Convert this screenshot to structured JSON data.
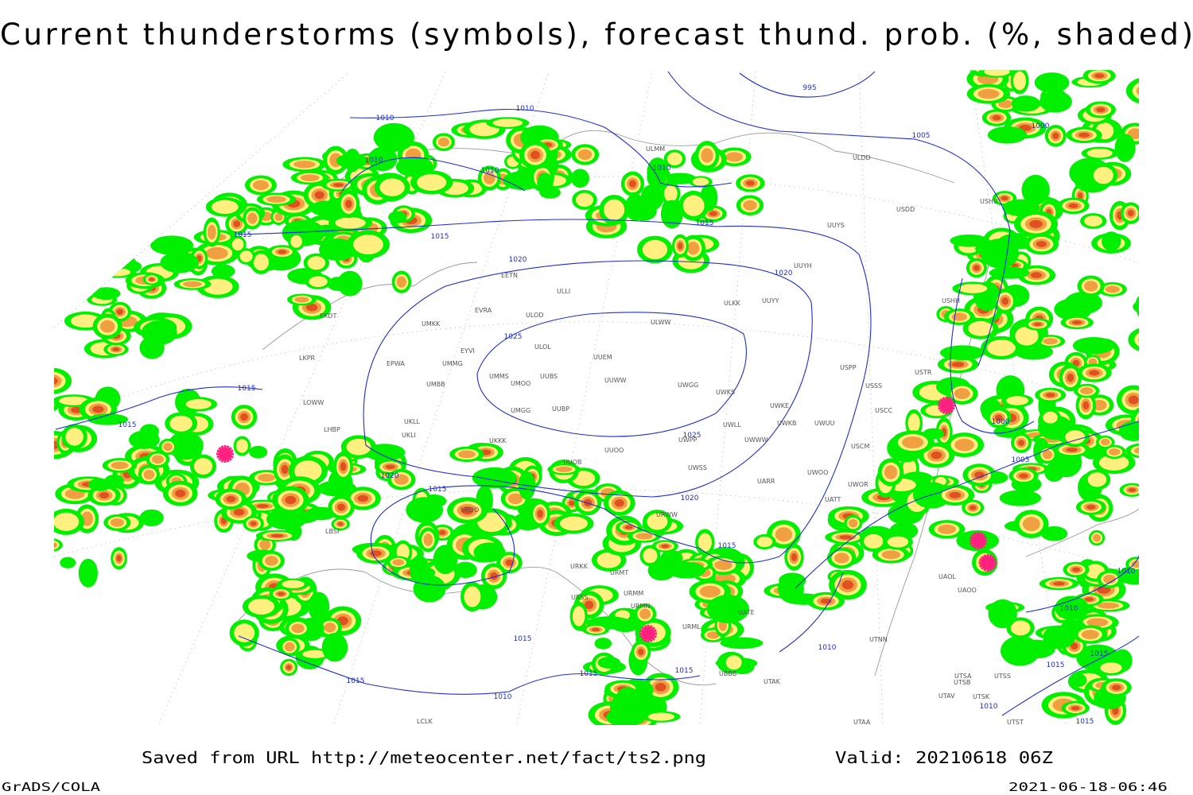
{
  "title": "Current thunderstorms (symbols), forecast thund. prob. (%, shaded)",
  "footer": {
    "source": "Saved from URL http://meteocenter.net/fact/ts2.png",
    "valid": "Valid: 20210618 06Z",
    "software": "GrADS/COLA",
    "timestamp": "2021-06-18-06:46"
  },
  "isobar_labels": [
    "995",
    "1000",
    "1000",
    "1005",
    "1005",
    "1010",
    "1010",
    "1010",
    "1010",
    "1010",
    "1010",
    "1010",
    "1010",
    "1010",
    "1010",
    "1015",
    "1015",
    "1015",
    "1015",
    "1015",
    "1015",
    "1015",
    "1015",
    "1015",
    "1015",
    "1015",
    "1015",
    "1015",
    "1015",
    "1020",
    "1020",
    "1020",
    "1020",
    "1025",
    "1025"
  ],
  "station_labels": [
    "ULMM",
    "ULDD",
    "USDD",
    "USHU",
    "UUYS",
    "UUYH",
    "EETN",
    "ULLI",
    "ULKK",
    "UUYY",
    "USHH",
    "EVRA",
    "EKDT",
    "ULOD",
    "UMKK",
    "ULWW",
    "ULOL",
    "EYVI",
    "UUEM",
    "LKPR",
    "EPWA",
    "UMMG",
    "USPP",
    "USTR",
    "UMMS",
    "UUBS",
    "UUWW",
    "UMOO",
    "UWGG",
    "UMBB",
    "UWKS",
    "USSS",
    "LOWW",
    "UWKE",
    "UMGG",
    "UUBP",
    "USCC",
    "UWUU",
    "UKLL",
    "UWKB",
    "UWLL",
    "LHBP",
    "UKLI",
    "UWWW",
    "UWPP",
    "USCM",
    "UKKK",
    "UUOO",
    "UUOB",
    "UWSS",
    "UWOO",
    "UARR",
    "UWOR",
    "UKOO",
    "URWW",
    "UATT",
    "LBSF",
    "URKK",
    "URMT",
    "URMM",
    "URSS",
    "URMN",
    "UATE",
    "URML",
    "UTNN",
    "UBBB",
    "UTAK",
    "UTSA",
    "UTSS",
    "UTSB",
    "UTAV",
    "UTSK",
    "UTAA",
    "LCLK",
    "UTST",
    "UAOL",
    "UAOO"
  ]
}
